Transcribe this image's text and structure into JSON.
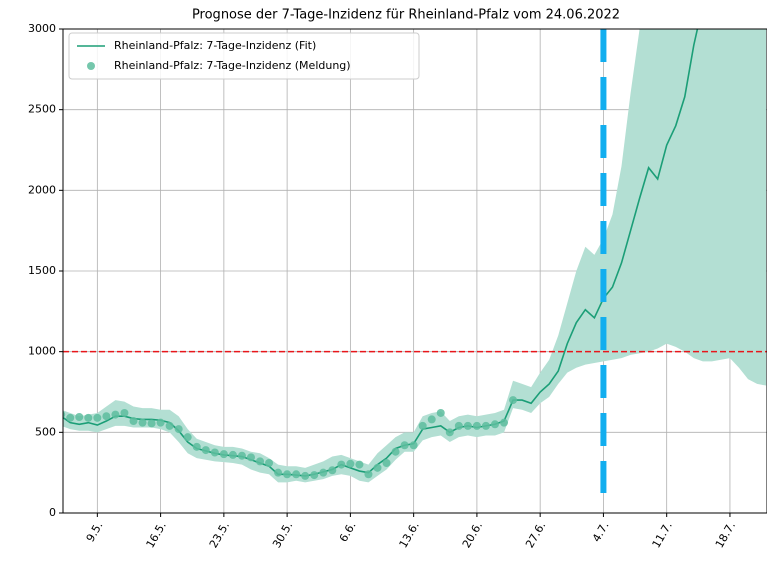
{
  "chart_data": {
    "type": "line",
    "title": "Prognose der 7-Tage-Inzidenz für Rheinland-Pfalz vom 24.06.2022",
    "xlim": [
      -3.8,
      74.1
    ],
    "ylim": [
      0,
      3000
    ],
    "yticks": [
      0,
      500,
      1000,
      1500,
      2000,
      2500,
      3000
    ],
    "xticks": [
      {
        "value": 0,
        "label": "9.5."
      },
      {
        "value": 7,
        "label": "16.5."
      },
      {
        "value": 14,
        "label": "23.5."
      },
      {
        "value": 21,
        "label": "30.5."
      },
      {
        "value": 28,
        "label": "6.6."
      },
      {
        "value": 35,
        "label": "13.6."
      },
      {
        "value": 42,
        "label": "20.6."
      },
      {
        "value": 49,
        "label": "27.6."
      },
      {
        "value": 56,
        "label": "4.7."
      },
      {
        "value": 63,
        "label": "11.7."
      },
      {
        "value": 70,
        "label": "18.7."
      }
    ],
    "grid": true,
    "legend": "upper left",
    "band": {
      "color": "#b3dfd3",
      "x": [
        -4,
        -3,
        -2,
        -1,
        0,
        1,
        2,
        3,
        4,
        5,
        6,
        7,
        8,
        9,
        10,
        11,
        12,
        13,
        14,
        15,
        16,
        17,
        18,
        19,
        20,
        21,
        22,
        23,
        24,
        25,
        26,
        27,
        28,
        29,
        30,
        31,
        32,
        33,
        34,
        35,
        36,
        37,
        38,
        39,
        40,
        41,
        42,
        43,
        44,
        45,
        46,
        47,
        48,
        49,
        50,
        51,
        52,
        53,
        54,
        55,
        56,
        57,
        58,
        59,
        60,
        61,
        62,
        63,
        64,
        65,
        66,
        67,
        68,
        69,
        70,
        71,
        72,
        73,
        74
      ],
      "lower": [
        540,
        520,
        510,
        510,
        500,
        520,
        540,
        540,
        530,
        530,
        530,
        520,
        500,
        440,
        370,
        340,
        330,
        320,
        315,
        310,
        300,
        270,
        250,
        240,
        190,
        190,
        200,
        190,
        200,
        210,
        230,
        240,
        230,
        200,
        190,
        230,
        270,
        330,
        380,
        380,
        450,
        470,
        480,
        440,
        470,
        480,
        470,
        480,
        480,
        500,
        650,
        640,
        620,
        680,
        720,
        800,
        870,
        900,
        920,
        930,
        940,
        950,
        960,
        980,
        990,
        1000,
        1020,
        1050,
        1030,
        1000,
        960,
        940,
        940,
        950,
        960,
        900,
        830,
        800,
        790
      ],
      "upper": [
        640,
        620,
        600,
        610,
        620,
        660,
        700,
        690,
        660,
        650,
        650,
        640,
        640,
        600,
        520,
        460,
        440,
        420,
        410,
        410,
        400,
        380,
        370,
        340,
        300,
        290,
        290,
        280,
        300,
        320,
        350,
        360,
        340,
        320,
        300,
        370,
        420,
        470,
        500,
        500,
        600,
        620,
        630,
        570,
        600,
        610,
        600,
        610,
        620,
        640,
        820,
        800,
        780,
        870,
        950,
        1100,
        1300,
        1500,
        1650,
        1600,
        1700,
        1850,
        2150,
        2600,
        3000,
        3300,
        3500,
        3700,
        3900,
        4100,
        4300,
        4500,
        4700,
        4900,
        5100,
        5300,
        5500,
        5700,
        5900
      ]
    },
    "series": [
      {
        "name": "Rheinland-Pfalz: 7-Tage-Inzidenz (Fit)",
        "color": "#1b9e77",
        "kind": "line",
        "x": [
          -4,
          -3,
          -2,
          -1,
          0,
          1,
          2,
          3,
          4,
          5,
          6,
          7,
          8,
          9,
          10,
          11,
          12,
          13,
          14,
          15,
          16,
          17,
          18,
          19,
          20,
          21,
          22,
          23,
          24,
          25,
          26,
          27,
          28,
          29,
          30,
          31,
          32,
          33,
          34,
          35,
          36,
          37,
          38,
          39,
          40,
          41,
          42,
          43,
          44,
          45,
          46,
          47,
          48,
          49,
          50,
          51,
          52,
          53,
          54,
          55,
          56,
          57,
          58,
          59,
          60,
          61,
          62,
          63,
          64,
          65,
          66,
          67
        ],
        "values": [
          600,
          560,
          550,
          560,
          545,
          570,
          600,
          600,
          585,
          580,
          580,
          575,
          560,
          510,
          440,
          400,
          385,
          370,
          360,
          355,
          350,
          330,
          310,
          290,
          240,
          240,
          235,
          230,
          240,
          255,
          270,
          300,
          280,
          260,
          250,
          300,
          340,
          400,
          420,
          430,
          520,
          530,
          540,
          500,
          530,
          540,
          530,
          540,
          550,
          570,
          700,
          700,
          680,
          750,
          800,
          880,
          1050,
          1180,
          1260,
          1210,
          1330,
          1400,
          1550,
          1750,
          1950,
          2140,
          2070,
          2280,
          2400,
          2580,
          2900,
          3150
        ]
      },
      {
        "name": "Rheinland-Pfalz: 7-Tage-Inzidenz (Meldung)",
        "color": "#5dbd9d",
        "kind": "scatter",
        "x": [
          -4,
          -3,
          -2,
          -1,
          0,
          1,
          2,
          3,
          4,
          5,
          6,
          7,
          8,
          9,
          10,
          11,
          12,
          13,
          14,
          15,
          16,
          17,
          18,
          19,
          20,
          21,
          22,
          23,
          24,
          25,
          26,
          27,
          28,
          29,
          30,
          31,
          32,
          33,
          34,
          35,
          36,
          37,
          38,
          39,
          40,
          41,
          42,
          43,
          44,
          45,
          46
        ],
        "values": [
          610,
          590,
          595,
          590,
          590,
          600,
          610,
          620,
          570,
          560,
          555,
          560,
          540,
          520,
          470,
          410,
          390,
          375,
          365,
          360,
          355,
          345,
          320,
          310,
          250,
          240,
          240,
          230,
          235,
          250,
          265,
          300,
          305,
          300,
          240,
          280,
          310,
          380,
          420,
          420,
          540,
          580,
          620,
          500,
          540,
          540,
          540,
          540,
          550,
          560,
          700
        ]
      }
    ],
    "hline": {
      "y": 1000,
      "color": "#e8161b"
    },
    "vline": {
      "x": 56,
      "color": "#12aeef"
    }
  }
}
